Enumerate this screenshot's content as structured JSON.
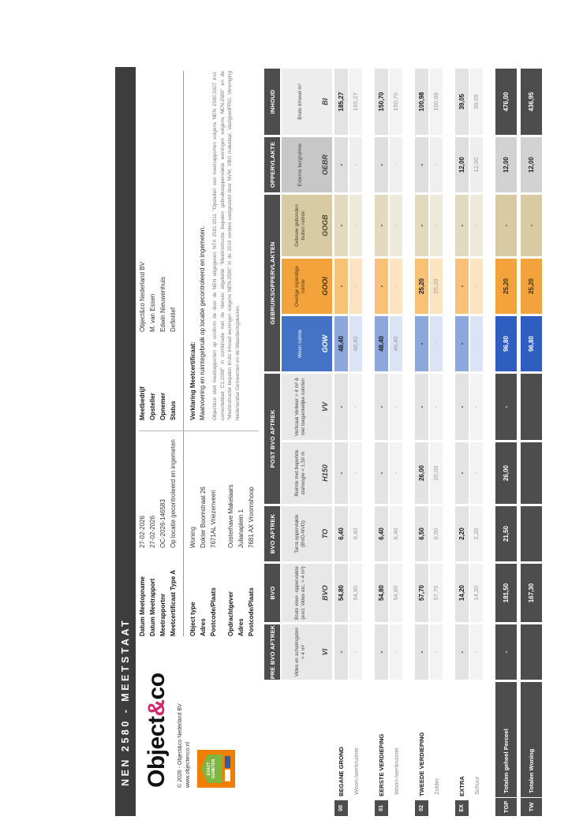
{
  "page": {
    "title": "NEN 2580 - MEETSTAAT"
  },
  "brand": {
    "name_a": "Object",
    "amp": "&",
    "name_b": "co",
    "copyright": "© 2026 - Object&co Nederland BV",
    "website": "www.objectenco.nl",
    "badge_line1": "EXACT",
    "badge_line2": "GEMETEN"
  },
  "info": {
    "meta1": [
      {
        "label": "Datum Meetopname",
        "value": "27-02-2026"
      },
      {
        "label": "Datum Meetrapport",
        "value": "27-02-2026"
      },
      {
        "label": "Meetrapportnr",
        "value": "OC-2026-146583"
      },
      {
        "label": "Meetcertificaat Type A",
        "value": "Op locatie gecontroleerd en ingemeten"
      }
    ],
    "meta2": [
      {
        "label": "Meetbedrijf",
        "value": "Object&co Nederland BV"
      },
      {
        "label": "Opsteller",
        "value": "M. van Essen"
      },
      {
        "label": "Opnemer",
        "value": "Edwin Nieuwenhuis"
      },
      {
        "label": "Status",
        "value": "Definitief"
      }
    ],
    "object": [
      {
        "label": "Object type",
        "value": "Woning"
      },
      {
        "label": "Adres",
        "value": "Dokter Boomstraat 26"
      },
      {
        "label": "Postcode/Plaats",
        "value": "7671AL Vriezenveen"
      }
    ],
    "client": [
      {
        "label": "Opdrachtgever",
        "value": "Oosterhave Makelaars"
      },
      {
        "label": "Adres",
        "value": "Julianaplein 1"
      },
      {
        "label": "Postcode/Plaats",
        "value": "7681 AX Vroomshoop"
      }
    ],
    "verklaring_heading": "Verklaring Meetcertificaat:",
    "verklaring_text": "Maatvoering en ruimtegebruik op locatie gecontroleerd en ingemeten.",
    "disclaimer": "Object&co stelt meetrapporten op conform de door de NEN uitgegeven NTA 2581:2011 \"Opstellen van meetrapporten volgens NEN 2580:2007 incl. correctieblad C1:2008\" in combinatie met de hiervan afgeleide \"Meetinstructie bepalen gebruiksoppervlakte woningen volgens NEN-2580\" en de \"Meetinstructie bepalen bruto inhoud woningen volgens NEN-2580\" in de 2016 versies vastgesteld door NVM, VBO makelaar, VastgoedPRO, Vereniging Nederlandse Gemeenten en de Waarderingskamer."
  },
  "colors": {
    "dark": "#4d4d4d",
    "blue": "#4472c4",
    "blue_total": "#2e5fc0",
    "blue_sub": "#8ba7db",
    "blue_light": "#dbe4f5",
    "orange": "#f3a33c",
    "orange_sub": "#f7c277",
    "orange_light": "#fce4c3",
    "tan": "#d8cba4",
    "tan_sub": "#e2dabe",
    "tan_light": "#ede9db",
    "gray_desc": "#e8e8e8",
    "gray_sub": "#e3e3e3",
    "gray_light": "#f3f3f3",
    "oebr_desc": "#c7c7c7",
    "oebr_sub": "#dedede",
    "oebr_light": "#efefef",
    "oebr_total": "#d2d2d2",
    "bi_desc": "#ededed",
    "accent_logo": "#d6246e",
    "badge_orange": "#ee7f00",
    "badge_green": "#7fb541"
  },
  "table": {
    "groups": [
      {
        "label": "PRE BVO AFTREK",
        "cols": [
          "vi"
        ]
      },
      {
        "label": "BVO",
        "cols": [
          "bvo"
        ]
      },
      {
        "label": "BVO AFTREK",
        "cols": [
          "to"
        ]
      },
      {
        "label": "POST BVO AFTREK",
        "cols": [
          "h150",
          "vv"
        ]
      },
      {
        "label": "GEBRUIKSOPPERVLAKTEN",
        "cols": [
          "gow",
          "gooi",
          "gogb"
        ]
      },
      {
        "label": "OPPERVLAKTE",
        "cols": [
          "oebr"
        ]
      },
      {
        "label": "INHOUD",
        "cols": [
          "bi"
        ]
      }
    ],
    "columns": [
      {
        "key": "vi",
        "desc": "Vides en schalmgaten > 4 m²",
        "code": "VI"
      },
      {
        "key": "bvo",
        "desc": "Bruto vloer- oppervlakte (excl. Vides etc. > 4 m²)",
        "code": "BVO"
      },
      {
        "key": "to",
        "desc": "Tarra oppervlakte (BVO-NVO)",
        "code": "TO"
      },
      {
        "key": "h150",
        "desc": "Ruimte met beperkte stahoogte < 1,50 m",
        "code": "H150"
      },
      {
        "key": "vv",
        "desc": "Verticaal Verkeer > 4 m² & niet toegankelijke ruimten",
        "code": "VV"
      },
      {
        "key": "gow",
        "desc": "Woon ruimte",
        "code": "GOW"
      },
      {
        "key": "gooi",
        "desc": "Overige inpandige ruimte",
        "code": "GOOI"
      },
      {
        "key": "gogb",
        "desc": "Gebouw gebonden buiten ruimte",
        "code": "GOGB"
      },
      {
        "key": "oebr",
        "desc": "Externe bergruimte",
        "code": "OEBR"
      },
      {
        "key": "bi",
        "desc": "Bruto inhoud m³",
        "code": "BI"
      }
    ],
    "rows": [
      {
        "kind": "storey",
        "code": "00",
        "name": "BEGANE GROND",
        "values": {
          "vi": "-",
          "bvo": "54,80",
          "to": "6,40",
          "h150": "-",
          "vv": "-",
          "gow": "48,40",
          "gooi": "-",
          "gogb": "-",
          "oebr": "-",
          "bi": "185,27"
        },
        "detail": {
          "name": "Woon-/werkruimte",
          "values": {
            "vi": "-",
            "bvo": "54,80",
            "to": "6,40",
            "h150": "-",
            "vv": "-",
            "gow": "48,40",
            "gooi": "-",
            "gogb": "-",
            "oebr": "-",
            "bi": "185,27"
          }
        }
      },
      {
        "kind": "storey",
        "code": "01",
        "name": "EERSTE VERDIEPING",
        "values": {
          "vi": "-",
          "bvo": "54,80",
          "to": "6,40",
          "h150": "-",
          "vv": "-",
          "gow": "48,40",
          "gooi": "-",
          "gogb": "-",
          "oebr": "-",
          "bi": "150,70"
        },
        "detail": {
          "name": "Woon-/werkruimte",
          "values": {
            "vi": "-",
            "bvo": "54,80",
            "to": "6,40",
            "h150": "-",
            "vv": "-",
            "gow": "48,40",
            "gooi": "-",
            "gogb": "-",
            "oebr": "-",
            "bi": "150,70"
          }
        }
      },
      {
        "kind": "storey",
        "code": "02",
        "name": "TWEEDE VERDIEPING",
        "values": {
          "vi": "-",
          "bvo": "57,70",
          "to": "6,50",
          "h150": "26,00",
          "vv": "-",
          "gow": "-",
          "gooi": "25,20",
          "gogb": "-",
          "oebr": "-",
          "bi": "100,98"
        },
        "detail": {
          "name": "Zolder",
          "values": {
            "vi": "-",
            "bvo": "57,70",
            "to": "6,50",
            "h150": "26,00",
            "vv": "-",
            "gow": "-",
            "gooi": "25,20",
            "gogb": "-",
            "oebr": "-",
            "bi": "100,98"
          }
        }
      },
      {
        "kind": "storey",
        "code": "EX",
        "name": "EXTRA",
        "values": {
          "vi": "-",
          "bvo": "14,20",
          "to": "2,20",
          "h150": "-",
          "vv": "-",
          "gow": "-",
          "gooi": "-",
          "gogb": "-",
          "oebr": "12,00",
          "bi": "39,05"
        },
        "detail": {
          "name": "Schuur",
          "values": {
            "vi": "-",
            "bvo": "14,20",
            "to": "2,20",
            "h150": "-",
            "vv": "-",
            "gow": "-",
            "gooi": "-",
            "gogb": "-",
            "oebr": "12,00",
            "bi": "39,05"
          }
        }
      },
      {
        "kind": "total",
        "code": "TGP",
        "name": "Totalen geheel Perceel",
        "values": {
          "vi": "-",
          "bvo": "181,50",
          "to": "21,50",
          "h150": "26,00",
          "vv": "-",
          "gow": "96,80",
          "gooi": "25,20",
          "gogb": "-",
          "oebr": "12,00",
          "bi": "476,00"
        }
      },
      {
        "kind": "total",
        "code": "TW",
        "name": "Totalen Woning",
        "values": {
          "vi": "",
          "bvo": "167,30",
          "to": "",
          "h150": "",
          "vv": "",
          "gow": "96,80",
          "gooi": "25,20",
          "gogb": "-",
          "oebr": "12,00",
          "bi": "436,95"
        }
      }
    ]
  }
}
